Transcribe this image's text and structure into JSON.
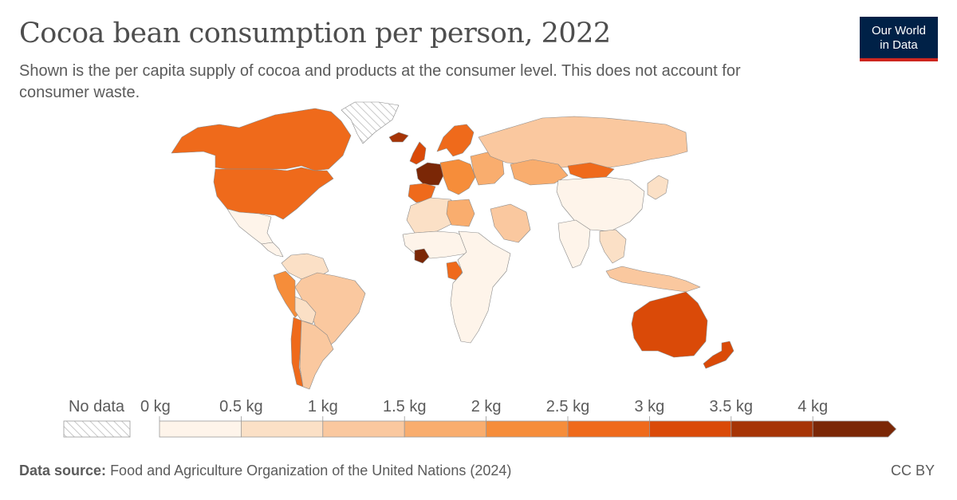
{
  "header": {
    "title": "Cocoa bean consumption per person, 2022",
    "subtitle": "Shown is the per capita supply of cocoa and products at the consumer level. This does not account for consumer waste.",
    "logo_line1": "Our World",
    "logo_line2": "in Data"
  },
  "legend": {
    "no_data_label": "No data",
    "tick_labels": [
      "0 kg",
      "0.5 kg",
      "1 kg",
      "1.5 kg",
      "2 kg",
      "2.5 kg",
      "3 kg",
      "3.5 kg",
      "4 kg"
    ],
    "bin_colors": [
      "#fef4ea",
      "#fbe0c6",
      "#fac89f",
      "#f9ad6e",
      "#f68d3a",
      "#ef6a1b",
      "#da4a08",
      "#a63406",
      "#7b2706"
    ],
    "no_data_color": "#e6e6e6"
  },
  "regions": [
    {
      "name": "canada",
      "color": "#ef6a1b"
    },
    {
      "name": "greenland",
      "color": "#e6e6e6"
    },
    {
      "name": "usa",
      "color": "#ef6a1b"
    },
    {
      "name": "mexico",
      "color": "#fef4ea"
    },
    {
      "name": "central-america",
      "color": "#fef4ea"
    },
    {
      "name": "colombia-venezuela",
      "color": "#fbe0c6"
    },
    {
      "name": "peru-ecuador",
      "color": "#f68d3a"
    },
    {
      "name": "brazil",
      "color": "#fac89f"
    },
    {
      "name": "bolivia",
      "color": "#fbe0c6"
    },
    {
      "name": "chile",
      "color": "#ef6a1b"
    },
    {
      "name": "argentina",
      "color": "#fac89f"
    },
    {
      "name": "iceland",
      "color": "#a63406"
    },
    {
      "name": "uk-ireland",
      "color": "#da4a08"
    },
    {
      "name": "scandinavia",
      "color": "#ef6a1b"
    },
    {
      "name": "france-benelux",
      "color": "#7b2706"
    },
    {
      "name": "iberia",
      "color": "#ef6a1b"
    },
    {
      "name": "central-europe",
      "color": "#f68d3a"
    },
    {
      "name": "eastern-europe",
      "color": "#f9ad6e"
    },
    {
      "name": "russia",
      "color": "#fac89f"
    },
    {
      "name": "kazakhstan",
      "color": "#f9ad6e"
    },
    {
      "name": "mongolia",
      "color": "#ef6a1b"
    },
    {
      "name": "china",
      "color": "#fef4ea"
    },
    {
      "name": "japan-korea",
      "color": "#fbe0c6"
    },
    {
      "name": "north-africa",
      "color": "#fbe0c6"
    },
    {
      "name": "libya",
      "color": "#f9ad6e"
    },
    {
      "name": "arabia",
      "color": "#fac89f"
    },
    {
      "name": "west-africa",
      "color": "#fef4ea"
    },
    {
      "name": "cote-divoire",
      "color": "#7b2706"
    },
    {
      "name": "gabon-congo",
      "color": "#ef6a1b"
    },
    {
      "name": "central-south-africa",
      "color": "#fef4ea"
    },
    {
      "name": "india",
      "color": "#fef4ea"
    },
    {
      "name": "southeast-asia",
      "color": "#fbe0c6"
    },
    {
      "name": "indonesia",
      "color": "#fac89f"
    },
    {
      "name": "australia",
      "color": "#da4a08"
    },
    {
      "name": "new-zealand",
      "color": "#da4a08"
    }
  ],
  "footer": {
    "source_label": "Data source:",
    "source_text": "Food and Agriculture Organization of the United Nations (2024)",
    "license": "CC BY"
  }
}
